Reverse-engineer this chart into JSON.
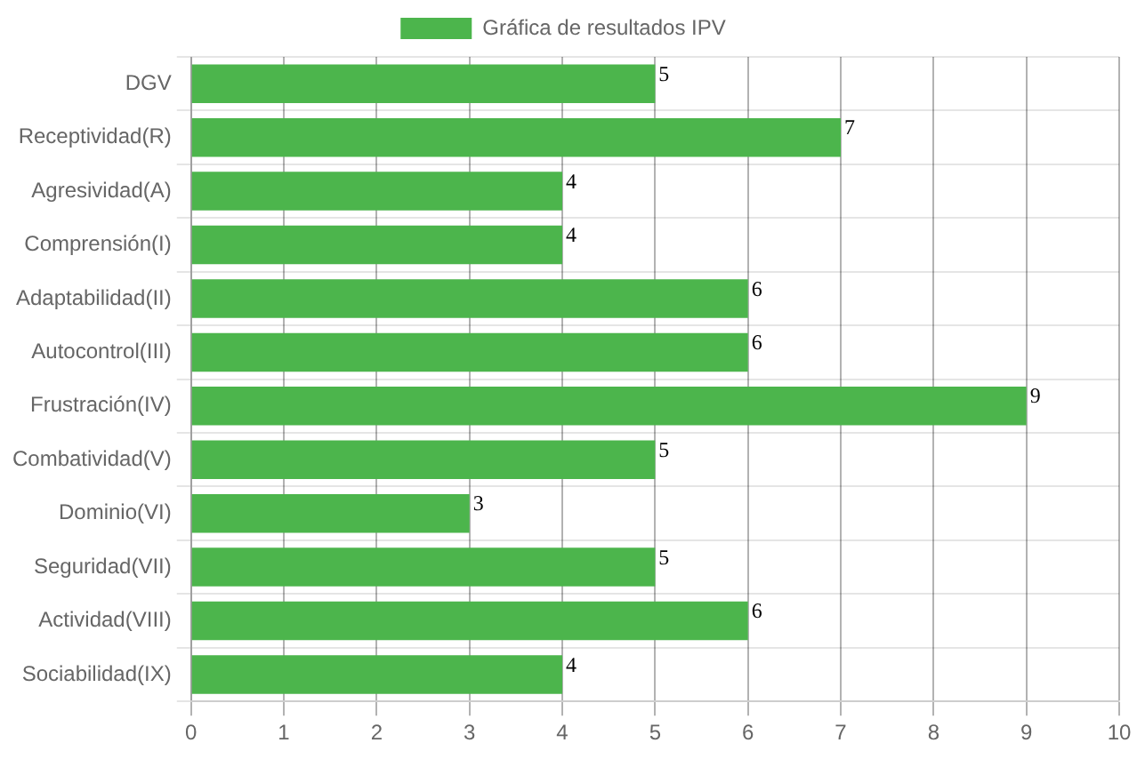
{
  "chart_data": {
    "type": "bar",
    "orientation": "horizontal",
    "categories": [
      "DGV",
      "Receptividad(R)",
      "Agresividad(A)",
      "Comprensión(I)",
      "Adaptabilidad(II)",
      "Autocontrol(III)",
      "Frustración(IV)",
      "Combatividad(V)",
      "Dominio(VI)",
      "Seguridad(VII)",
      "Actividad(VIII)",
      "Sociabilidad(IX)"
    ],
    "series": [
      {
        "name": "Gráfica de resultados IPV",
        "color": "#4cb54c",
        "values": [
          5,
          7,
          4,
          4,
          6,
          6,
          9,
          5,
          3,
          5,
          6,
          4
        ]
      }
    ],
    "xlim": [
      0,
      10
    ],
    "xticks": [
      0,
      1,
      2,
      3,
      4,
      5,
      6,
      7,
      8,
      9,
      10
    ],
    "grid": true,
    "legend": "top",
    "data_labels": true
  }
}
